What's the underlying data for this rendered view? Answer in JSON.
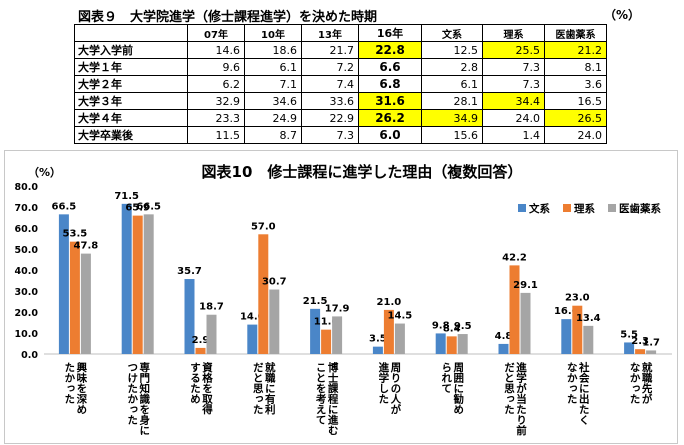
{
  "table9": {
    "title": "図表９　大学院進学（修士課程進学）を決めた時期",
    "unit": "（%）",
    "headers": [
      "07年",
      "10年",
      "13年",
      "16年",
      "文系",
      "理系",
      "医歯薬系"
    ],
    "rows": [
      {
        "label": "大学入学前",
        "cells": [
          "14.6",
          "18.6",
          "21.7",
          "22.8",
          "12.5",
          "25.5",
          "21.2"
        ]
      },
      {
        "label": "大学１年",
        "cells": [
          "9.6",
          "6.1",
          "7.2",
          "6.6",
          "2.8",
          "7.3",
          "8.1"
        ]
      },
      {
        "label": "大学２年",
        "cells": [
          "6.2",
          "7.1",
          "7.4",
          "6.8",
          "6.1",
          "7.3",
          "3.6"
        ]
      },
      {
        "label": "大学３年",
        "cells": [
          "32.9",
          "34.6",
          "33.6",
          "31.6",
          "28.1",
          "34.4",
          "16.5"
        ]
      },
      {
        "label": "大学４年",
        "cells": [
          "23.3",
          "24.9",
          "22.9",
          "26.2",
          "34.9",
          "24.0",
          "26.5"
        ]
      },
      {
        "label": "大学卒業後",
        "cells": [
          "11.5",
          "8.7",
          "7.3",
          "6.0",
          "15.6",
          "1.4",
          "24.0"
        ]
      }
    ],
    "highlight": [
      [
        0,
        3
      ],
      [
        0,
        5
      ],
      [
        0,
        6
      ],
      [
        3,
        3
      ],
      [
        3,
        5
      ],
      [
        4,
        3
      ],
      [
        4,
        4
      ],
      [
        4,
        6
      ]
    ],
    "highlight_color": "#ffff00"
  },
  "chart_data": {
    "type": "bar",
    "title": "図表10　修士課程に進学した理由（複数回答）",
    "ylabel": "（%）",
    "ylim": [
      0,
      80
    ],
    "yticks": [
      "0.0",
      "10.0",
      "20.0",
      "30.0",
      "40.0",
      "50.0",
      "60.0",
      "70.0",
      "80.0"
    ],
    "legend_position": "top-right",
    "grid": false,
    "categories": [
      [
        "興味を深め",
        "たかった"
      ],
      [
        "専門知識を身に",
        "つけたかった"
      ],
      [
        "資格を取得",
        "するため"
      ],
      [
        "就職に有利",
        "だと思った"
      ],
      [
        "博士課程に進む",
        "ことを考えて"
      ],
      [
        "周りの人が",
        "進学した"
      ],
      [
        "周囲に勧め",
        "られて"
      ],
      [
        "進学が当たり前",
        "だと思った"
      ],
      [
        "社会に出たく",
        "なかった"
      ],
      [
        "就職先が",
        "なかった"
      ]
    ],
    "series": [
      {
        "name": "文系",
        "color": "#4a86c8",
        "values": [
          66.5,
          71.5,
          35.7,
          14.0,
          21.5,
          3.5,
          9.8,
          4.8,
          16.6,
          5.5
        ]
      },
      {
        "name": "理系",
        "color": "#ed7d31",
        "values": [
          53.5,
          65.9,
          2.9,
          57.0,
          11.6,
          21.0,
          8.4,
          42.2,
          23.0,
          2.3
        ]
      },
      {
        "name": "医歯薬系",
        "color": "#a5a5a5",
        "values": [
          47.8,
          66.5,
          18.7,
          30.7,
          17.9,
          14.5,
          9.5,
          29.1,
          13.4,
          1.7
        ]
      }
    ]
  }
}
